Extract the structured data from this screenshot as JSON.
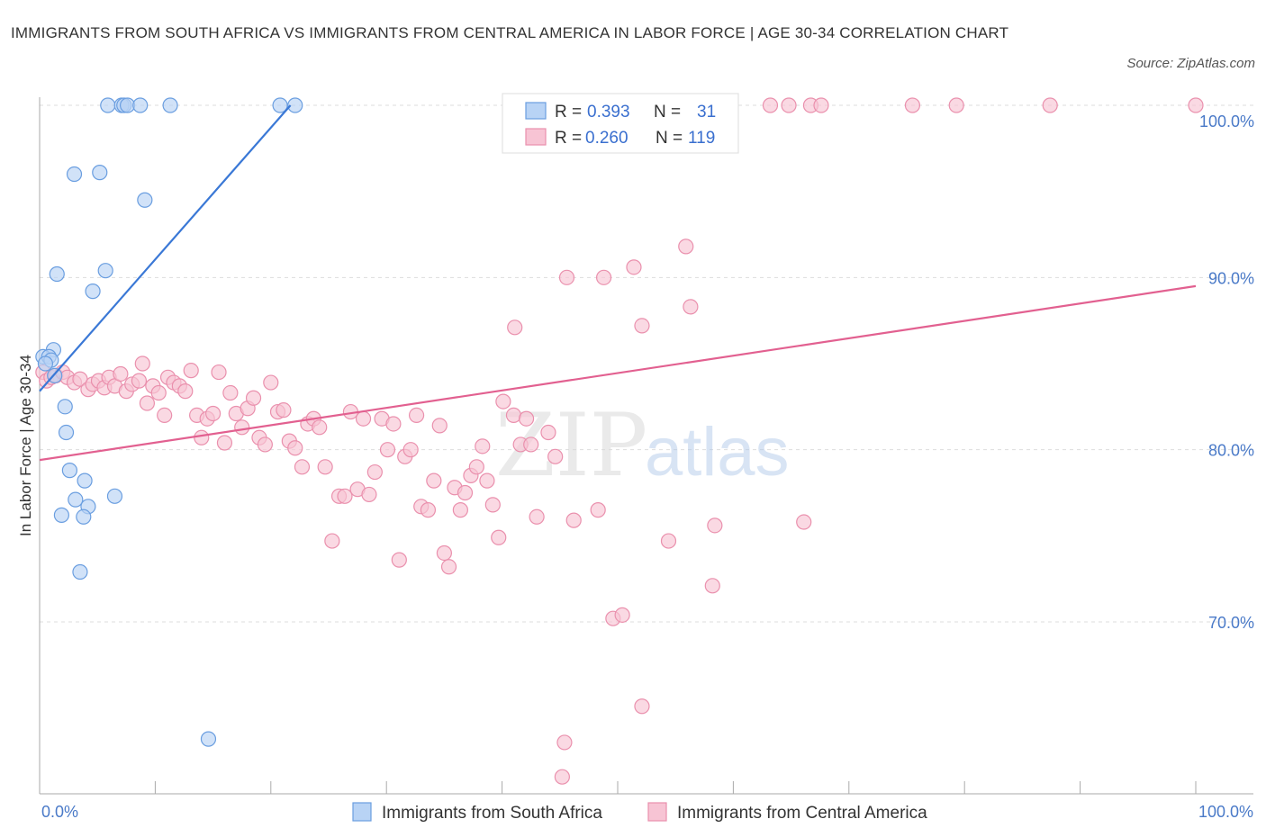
{
  "title": "IMMIGRANTS FROM SOUTH AFRICA VS IMMIGRANTS FROM CENTRAL AMERICA IN LABOR FORCE | AGE 30-34 CORRELATION CHART",
  "source": "Source: ZipAtlas.com",
  "watermark": {
    "zip": "ZIP",
    "atlas": "atlas"
  },
  "colors": {
    "blue_fill": "#b8d3f5",
    "blue_stroke": "#6a9ee0",
    "blue_line": "#3a78d6",
    "pink_fill": "#f7c4d4",
    "pink_stroke": "#ea90ad",
    "pink_line": "#e26090",
    "grid": "#dddddd",
    "tick_text": "#4a7ac8"
  },
  "legend": {
    "rows": [
      {
        "series": "blue",
        "r_label": "R =",
        "r_value": "0.393",
        "n_label": "N =",
        "n_value": "31"
      },
      {
        "series": "pink",
        "r_label": "R =",
        "r_value": "0.260",
        "n_label": "N =",
        "n_value": "119"
      }
    ]
  },
  "chart_data": {
    "type": "scatter",
    "title": "IMMIGRANTS FROM SOUTH AFRICA VS IMMIGRANTS FROM CENTRAL AMERICA IN LABOR FORCE | AGE 30-34 CORRELATION CHART",
    "xlabel": "",
    "ylabel": "In Labor Force | Age 30-34",
    "xlim": [
      0,
      100
    ],
    "ylim": [
      60,
      100
    ],
    "x_tick_labels": [
      "0.0%",
      "100.0%"
    ],
    "y_ticks": [
      70,
      80,
      90,
      100
    ],
    "y_tick_labels": [
      "70.0%",
      "80.0%",
      "90.0%",
      "100.0%"
    ],
    "grid": true,
    "legend_position": "top-center",
    "series": [
      {
        "name": "Immigrants from South Africa",
        "color": "blue",
        "r": 0.393,
        "n": 31,
        "trend": {
          "x": [
            0.0,
            21.7
          ],
          "y": [
            83.4,
            100.0
          ]
        },
        "points": [
          [
            5.9,
            100
          ],
          [
            7.1,
            100
          ],
          [
            7.3,
            100
          ],
          [
            7.6,
            100
          ],
          [
            8.7,
            100
          ],
          [
            11.3,
            100
          ],
          [
            20.8,
            100
          ],
          [
            22.1,
            100
          ],
          [
            3.0,
            96.0
          ],
          [
            5.2,
            96.1
          ],
          [
            9.1,
            94.5
          ],
          [
            1.5,
            90.2
          ],
          [
            5.7,
            90.4
          ],
          [
            4.6,
            89.2
          ],
          [
            1.2,
            85.8
          ],
          [
            0.3,
            85.4
          ],
          [
            0.8,
            85.4
          ],
          [
            1.0,
            85.2
          ],
          [
            0.5,
            85.0
          ],
          [
            1.3,
            84.3
          ],
          [
            2.2,
            82.5
          ],
          [
            2.3,
            81.0
          ],
          [
            2.6,
            78.8
          ],
          [
            3.9,
            78.2
          ],
          [
            6.5,
            77.3
          ],
          [
            3.1,
            77.1
          ],
          [
            4.2,
            76.7
          ],
          [
            1.9,
            76.2
          ],
          [
            3.8,
            76.1
          ],
          [
            3.5,
            72.9
          ],
          [
            14.6,
            63.2
          ]
        ]
      },
      {
        "name": "Immigrants from Central America",
        "color": "pink",
        "r": 0.26,
        "n": 119,
        "trend": {
          "x": [
            0.0,
            100.0
          ],
          "y": [
            79.4,
            89.5
          ]
        },
        "points": [
          [
            47.6,
            100
          ],
          [
            50.3,
            100
          ],
          [
            53.5,
            100
          ],
          [
            55.2,
            100
          ],
          [
            59.7,
            100
          ],
          [
            63.2,
            100
          ],
          [
            64.8,
            100
          ],
          [
            66.7,
            100
          ],
          [
            67.6,
            100
          ],
          [
            75.5,
            100
          ],
          [
            79.3,
            100
          ],
          [
            87.4,
            100
          ],
          [
            100.0,
            100
          ],
          [
            55.9,
            91.8
          ],
          [
            51.4,
            90.6
          ],
          [
            45.6,
            90.0
          ],
          [
            48.8,
            90.0
          ],
          [
            56.3,
            88.3
          ],
          [
            41.1,
            87.1
          ],
          [
            52.1,
            87.2
          ],
          [
            0.3,
            84.5
          ],
          [
            0.6,
            84.0
          ],
          [
            1.0,
            84.2
          ],
          [
            1.4,
            84.3
          ],
          [
            2.0,
            84.5
          ],
          [
            2.4,
            84.2
          ],
          [
            3.0,
            83.9
          ],
          [
            3.5,
            84.1
          ],
          [
            4.2,
            83.5
          ],
          [
            4.6,
            83.8
          ],
          [
            5.1,
            84.0
          ],
          [
            5.6,
            83.6
          ],
          [
            6.0,
            84.2
          ],
          [
            6.5,
            83.7
          ],
          [
            7.0,
            84.4
          ],
          [
            7.5,
            83.4
          ],
          [
            8.0,
            83.8
          ],
          [
            8.6,
            84.0
          ],
          [
            8.9,
            85.0
          ],
          [
            9.3,
            82.7
          ],
          [
            9.8,
            83.7
          ],
          [
            10.3,
            83.3
          ],
          [
            10.8,
            82.0
          ],
          [
            11.1,
            84.2
          ],
          [
            11.6,
            83.9
          ],
          [
            12.1,
            83.7
          ],
          [
            12.6,
            83.4
          ],
          [
            13.1,
            84.6
          ],
          [
            13.6,
            82.0
          ],
          [
            14.0,
            80.7
          ],
          [
            14.5,
            81.8
          ],
          [
            15.0,
            82.1
          ],
          [
            15.5,
            84.5
          ],
          [
            16.0,
            80.4
          ],
          [
            16.5,
            83.3
          ],
          [
            17.0,
            82.1
          ],
          [
            17.5,
            81.3
          ],
          [
            18.0,
            82.4
          ],
          [
            18.5,
            83.0
          ],
          [
            19.0,
            80.7
          ],
          [
            19.5,
            80.3
          ],
          [
            20.0,
            83.9
          ],
          [
            20.6,
            82.2
          ],
          [
            21.1,
            82.3
          ],
          [
            21.6,
            80.5
          ],
          [
            22.1,
            80.1
          ],
          [
            22.7,
            79.0
          ],
          [
            23.2,
            81.5
          ],
          [
            23.7,
            81.8
          ],
          [
            24.2,
            81.3
          ],
          [
            24.7,
            79.0
          ],
          [
            25.3,
            74.7
          ],
          [
            25.9,
            77.3
          ],
          [
            26.4,
            77.3
          ],
          [
            26.9,
            82.2
          ],
          [
            27.5,
            77.7
          ],
          [
            28.0,
            81.8
          ],
          [
            28.5,
            77.4
          ],
          [
            29.0,
            78.7
          ],
          [
            29.6,
            81.8
          ],
          [
            30.1,
            80.0
          ],
          [
            30.6,
            81.5
          ],
          [
            31.1,
            73.6
          ],
          [
            31.6,
            79.6
          ],
          [
            32.1,
            80.0
          ],
          [
            32.6,
            82.0
          ],
          [
            33.0,
            76.7
          ],
          [
            33.6,
            76.5
          ],
          [
            34.1,
            78.2
          ],
          [
            34.6,
            81.4
          ],
          [
            35.0,
            74.0
          ],
          [
            35.4,
            73.2
          ],
          [
            35.9,
            77.8
          ],
          [
            36.4,
            76.5
          ],
          [
            36.8,
            77.5
          ],
          [
            37.3,
            78.5
          ],
          [
            37.8,
            79.0
          ],
          [
            38.3,
            80.2
          ],
          [
            38.7,
            78.2
          ],
          [
            39.2,
            76.8
          ],
          [
            39.7,
            74.9
          ],
          [
            40.1,
            82.8
          ],
          [
            41.0,
            82.0
          ],
          [
            41.6,
            80.3
          ],
          [
            42.1,
            81.8
          ],
          [
            42.5,
            80.3
          ],
          [
            43.0,
            76.1
          ],
          [
            44.0,
            81.0
          ],
          [
            44.6,
            79.6
          ],
          [
            45.4,
            63.0
          ],
          [
            45.2,
            61.0
          ],
          [
            46.2,
            75.9
          ],
          [
            48.3,
            76.5
          ],
          [
            49.6,
            70.2
          ],
          [
            50.4,
            70.4
          ],
          [
            52.1,
            65.1
          ],
          [
            54.4,
            74.7
          ],
          [
            58.2,
            72.1
          ],
          [
            58.4,
            75.6
          ],
          [
            66.1,
            75.8
          ]
        ]
      }
    ]
  }
}
